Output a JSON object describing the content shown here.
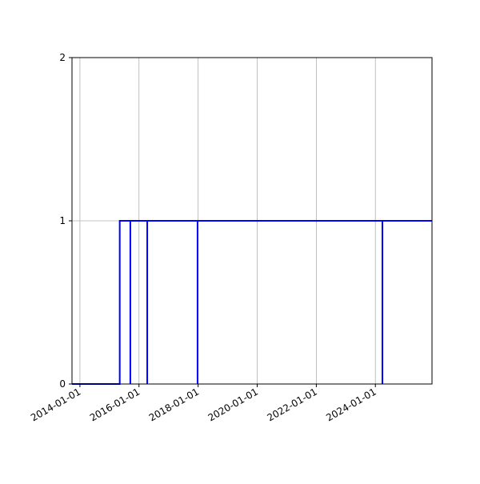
{
  "chart_data": {
    "type": "line",
    "title": "",
    "xlabel": "",
    "ylabel": "",
    "xlim": [
      "2013-09-25",
      "2025-12-01"
    ],
    "ylim": [
      0,
      2
    ],
    "grid": true,
    "x_ticks": [
      "2014-01-01",
      "2016-01-01",
      "2018-01-01",
      "2020-01-01",
      "2022-01-01",
      "2024-01-01"
    ],
    "y_ticks": [
      0,
      1,
      2
    ],
    "series": [
      {
        "color": "#0000ff",
        "drawstyle": "steps",
        "points": [
          {
            "x": "2013-09-25",
            "y": 0
          },
          {
            "x": "2015-05-08",
            "y": 0
          },
          {
            "x": "2015-05-08",
            "y": 1
          },
          {
            "x": "2015-09-16",
            "y": 1
          },
          {
            "x": "2015-09-16",
            "y": 0
          },
          {
            "x": "2015-09-16",
            "y": 1
          },
          {
            "x": "2016-04-12",
            "y": 1
          },
          {
            "x": "2016-04-12",
            "y": 0
          },
          {
            "x": "2016-04-12",
            "y": 1
          },
          {
            "x": "2017-12-25",
            "y": 1
          },
          {
            "x": "2017-12-25",
            "y": 0
          },
          {
            "x": "2017-12-25",
            "y": 1
          },
          {
            "x": "2024-03-28",
            "y": 1
          },
          {
            "x": "2024-03-28",
            "y": 0
          },
          {
            "x": "2024-03-28",
            "y": 1
          },
          {
            "x": "2025-12-01",
            "y": 1
          }
        ]
      }
    ]
  }
}
